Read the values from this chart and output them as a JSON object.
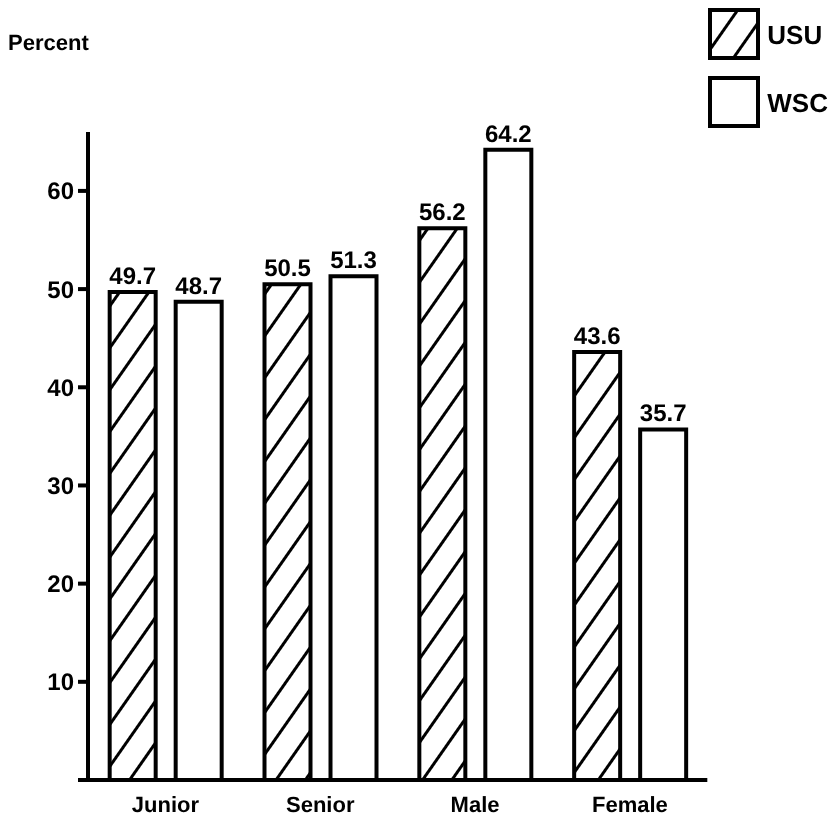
{
  "chart_data": {
    "type": "bar",
    "ylabel": "Percent",
    "categories": [
      "Junior",
      "Senior",
      "Male",
      "Female"
    ],
    "series": [
      {
        "name": "USU",
        "color": "#000000",
        "values": [
          49.7,
          50.5,
          56.2,
          43.6
        ]
      },
      {
        "name": "WSC",
        "color": "#ffffff",
        "values": [
          48.7,
          51.3,
          64.2,
          35.7
        ]
      }
    ],
    "ylim": [
      0,
      66
    ],
    "yticks": [
      {
        "value": 0,
        "label": null
      },
      10,
      20,
      30,
      40,
      50,
      60
    ],
    "data_labels": true,
    "legend": "top right",
    "grid": false
  }
}
